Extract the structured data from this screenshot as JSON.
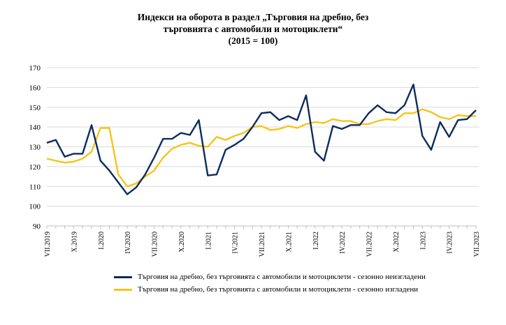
{
  "chart_data": {
    "type": "line",
    "title": [
      "Индекси на оборота в раздел „Търговия на дребно, без",
      "търговията с автомобили и мотоциклети“",
      "(2015 = 100)"
    ],
    "xlabel": "",
    "ylabel": "",
    "ylim": [
      90,
      170
    ],
    "yticks": [
      90,
      100,
      110,
      120,
      130,
      140,
      150,
      160,
      170
    ],
    "grid": "horizontal",
    "legend_position": "bottom",
    "x": [
      "VII.2019",
      "VIII.2019",
      "IX.2019",
      "X.2019",
      "XI.2019",
      "XII.2019",
      "I.2020",
      "II.2020",
      "III.2020",
      "IV.2020",
      "V.2020",
      "VI.2020",
      "VII.2020",
      "VIII.2020",
      "IX.2020",
      "X.2020",
      "XI.2020",
      "XII.2020",
      "I.2021",
      "II.2021",
      "III.2021",
      "IV.2021",
      "V.2021",
      "VI.2021",
      "VII.2021",
      "VIII.2021",
      "IX.2021",
      "X.2021",
      "XI.2021",
      "XII.2021",
      "I.2022",
      "II.2022",
      "III.2022",
      "IV.2022",
      "V.2022",
      "VI.2022",
      "VII.2022",
      "VIII.2022",
      "IX.2022",
      "X.2022",
      "XI.2022",
      "XII.2022",
      "I.2023",
      "II.2023",
      "III.2023",
      "IV.2023",
      "V.2023",
      "VI.2023",
      "VII.2023"
    ],
    "xtick_labels": [
      "VII.2019",
      "X.2019",
      "I.2020",
      "IV.2020",
      "VII.2020",
      "X.2020",
      "I.2021",
      "IV.2021",
      "VII.2021",
      "X.2021",
      "I.2022",
      "IV.2022",
      "VII.2022",
      "X.2022",
      "I.2023",
      "IV.2023",
      "VII.2023"
    ],
    "series": [
      {
        "name": "Търговия на дребно, без търговията  с автомобили и мотоциклети  - сезонно неизгладени",
        "color": "#0d2b5e",
        "values": [
          132,
          133.5,
          125,
          126.5,
          126.5,
          141,
          123,
          118,
          112,
          106,
          109.5,
          116,
          124.5,
          134,
          134,
          137,
          136,
          143.5,
          115.5,
          116,
          128.5,
          131,
          134,
          140,
          147,
          147.5,
          143.5,
          145.5,
          143.5,
          156,
          127.5,
          123,
          140.5,
          139,
          141,
          141,
          147,
          151,
          147.5,
          147,
          151,
          161.5,
          135.5,
          128.5,
          142.5,
          135,
          143.5,
          144,
          148.5
        ]
      },
      {
        "name": "Търговия на дребно, без търговията  с автомобили и мотоциклети  - сезонно изгладени",
        "color": "#f5c518",
        "values": [
          124,
          123,
          122,
          122.5,
          124,
          127.5,
          139.5,
          139.5,
          116,
          110,
          111.5,
          115,
          118,
          124.5,
          129,
          131,
          132,
          130.5,
          130,
          135,
          133.5,
          135.5,
          137,
          140,
          140.5,
          138.5,
          139,
          140.5,
          139.5,
          141.5,
          142.5,
          142,
          144,
          143,
          143,
          141.5,
          141.5,
          143,
          144,
          143.5,
          147,
          147,
          149,
          147.5,
          145,
          144,
          146,
          145.5,
          145.5
        ]
      }
    ]
  }
}
